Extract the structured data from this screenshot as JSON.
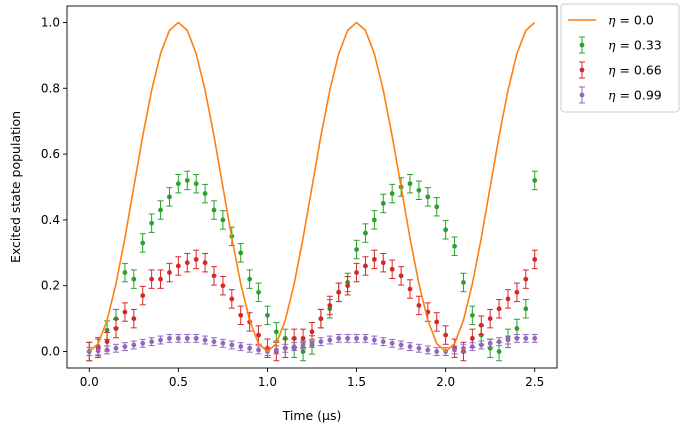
{
  "chart_data": {
    "type": "line",
    "xlabel": "Time (µs)",
    "ylabel": "Excited state population",
    "xlim": [
      -0.125,
      2.625
    ],
    "ylim": [
      -0.05,
      1.05
    ],
    "x_ticks": [
      0.0,
      0.5,
      1.0,
      1.5,
      2.0,
      2.5
    ],
    "x_tick_labels": [
      "0.0",
      "0.5",
      "1.0",
      "1.5",
      "2.0",
      "2.5"
    ],
    "y_ticks": [
      0.0,
      0.2,
      0.4,
      0.6,
      0.8,
      1.0
    ],
    "y_tick_labels": [
      "0.0",
      "0.2",
      "0.4",
      "0.6",
      "0.8",
      "1.0"
    ],
    "grid": false,
    "legend_position": "outside-top-right",
    "legend_symbol": "η",
    "series": [
      {
        "name": "η = 0.0",
        "legend_value": "0.0",
        "kind": "line",
        "color": "#ff7f0e",
        "x": [
          0.0,
          0.05,
          0.1,
          0.15,
          0.2,
          0.25,
          0.3,
          0.35,
          0.4,
          0.45,
          0.5,
          0.55,
          0.6,
          0.65,
          0.7,
          0.75,
          0.8,
          0.85,
          0.9,
          0.95,
          1.0,
          1.05,
          1.1,
          1.15,
          1.2,
          1.25,
          1.3,
          1.35,
          1.4,
          1.45,
          1.5,
          1.55,
          1.6,
          1.65,
          1.7,
          1.75,
          1.8,
          1.85,
          1.9,
          1.95,
          2.0,
          2.05,
          2.1,
          2.15,
          2.2,
          2.25,
          2.3,
          2.35,
          2.4,
          2.45,
          2.5
        ],
        "y": [
          0.0,
          0.024,
          0.095,
          0.206,
          0.345,
          0.5,
          0.655,
          0.794,
          0.905,
          0.976,
          1.0,
          0.976,
          0.905,
          0.794,
          0.655,
          0.5,
          0.345,
          0.206,
          0.095,
          0.024,
          0.0,
          0.024,
          0.095,
          0.206,
          0.345,
          0.5,
          0.655,
          0.794,
          0.905,
          0.976,
          1.0,
          0.976,
          0.905,
          0.794,
          0.655,
          0.5,
          0.345,
          0.206,
          0.095,
          0.024,
          0.0,
          0.024,
          0.095,
          0.206,
          0.345,
          0.5,
          0.655,
          0.794,
          0.905,
          0.976,
          1.0
        ]
      },
      {
        "name": "η = 0.33",
        "legend_value": "0.33",
        "kind": "errorbar",
        "color": "#2ca02c",
        "x": [
          0.0,
          0.05,
          0.1,
          0.15,
          0.2,
          0.25,
          0.3,
          0.35,
          0.4,
          0.45,
          0.5,
          0.55,
          0.6,
          0.65,
          0.7,
          0.75,
          0.8,
          0.85,
          0.9,
          0.95,
          1.0,
          1.05,
          1.1,
          1.15,
          1.2,
          1.25,
          1.3,
          1.35,
          1.4,
          1.45,
          1.5,
          1.55,
          1.6,
          1.65,
          1.7,
          1.75,
          1.8,
          1.85,
          1.9,
          1.95,
          2.0,
          2.05,
          2.1,
          2.15,
          2.2,
          2.25,
          2.3,
          2.35,
          2.4,
          2.45,
          2.5
        ],
        "y": [
          0.0,
          0.015,
          0.065,
          0.1,
          0.24,
          0.22,
          0.33,
          0.39,
          0.43,
          0.47,
          0.51,
          0.52,
          0.51,
          0.48,
          0.43,
          0.4,
          0.35,
          0.3,
          0.22,
          0.18,
          0.11,
          0.06,
          0.04,
          0.01,
          0.0,
          0.02,
          0.1,
          0.13,
          0.18,
          0.21,
          0.31,
          0.36,
          0.4,
          0.45,
          0.48,
          0.5,
          0.51,
          0.49,
          0.47,
          0.44,
          0.37,
          0.32,
          0.21,
          0.11,
          0.05,
          0.01,
          0.0,
          0.04,
          0.07,
          0.13,
          0.52
        ],
        "yerr": 0.028
      },
      {
        "name": "η = 0.66",
        "legend_value": "0.66",
        "kind": "errorbar",
        "color": "#d62728",
        "x": [
          0.0,
          0.05,
          0.1,
          0.15,
          0.2,
          0.25,
          0.3,
          0.35,
          0.4,
          0.45,
          0.5,
          0.55,
          0.6,
          0.65,
          0.7,
          0.75,
          0.8,
          0.85,
          0.9,
          0.95,
          1.0,
          1.05,
          1.1,
          1.15,
          1.2,
          1.25,
          1.3,
          1.35,
          1.4,
          1.45,
          1.5,
          1.55,
          1.6,
          1.65,
          1.7,
          1.75,
          1.8,
          1.85,
          1.9,
          1.95,
          2.0,
          2.05,
          2.1,
          2.15,
          2.2,
          2.25,
          2.3,
          2.35,
          2.4,
          2.45,
          2.5
        ],
        "y": [
          0.0,
          0.01,
          0.03,
          0.07,
          0.12,
          0.1,
          0.17,
          0.22,
          0.22,
          0.24,
          0.26,
          0.27,
          0.28,
          0.27,
          0.23,
          0.2,
          0.16,
          0.11,
          0.09,
          0.05,
          0.01,
          0.0,
          0.01,
          0.04,
          0.04,
          0.06,
          0.1,
          0.14,
          0.18,
          0.2,
          0.24,
          0.26,
          0.28,
          0.27,
          0.25,
          0.23,
          0.19,
          0.14,
          0.12,
          0.09,
          0.05,
          0.01,
          0.0,
          0.04,
          0.08,
          0.1,
          0.13,
          0.16,
          0.18,
          0.22,
          0.28
        ],
        "yerr": 0.028
      },
      {
        "name": "η = 0.99",
        "legend_value": "0.99",
        "kind": "errorbar",
        "color": "#9467bd",
        "x": [
          0.0,
          0.05,
          0.1,
          0.15,
          0.2,
          0.25,
          0.3,
          0.35,
          0.4,
          0.45,
          0.5,
          0.55,
          0.6,
          0.65,
          0.7,
          0.75,
          0.8,
          0.85,
          0.9,
          0.95,
          1.0,
          1.05,
          1.1,
          1.15,
          1.2,
          1.25,
          1.3,
          1.35,
          1.4,
          1.45,
          1.5,
          1.55,
          1.6,
          1.65,
          1.7,
          1.75,
          1.8,
          1.85,
          1.9,
          1.95,
          2.0,
          2.05,
          2.1,
          2.15,
          2.2,
          2.25,
          2.3,
          2.35,
          2.4,
          2.45,
          2.5
        ],
        "y": [
          0.0,
          0.002,
          0.005,
          0.01,
          0.015,
          0.02,
          0.025,
          0.03,
          0.035,
          0.04,
          0.04,
          0.04,
          0.04,
          0.035,
          0.03,
          0.025,
          0.02,
          0.015,
          0.01,
          0.005,
          0.0,
          0.005,
          0.01,
          0.015,
          0.02,
          0.025,
          0.03,
          0.035,
          0.04,
          0.04,
          0.04,
          0.04,
          0.035,
          0.03,
          0.025,
          0.02,
          0.015,
          0.01,
          0.005,
          0.0,
          0.0,
          0.005,
          0.01,
          0.015,
          0.02,
          0.025,
          0.03,
          0.035,
          0.04,
          0.04,
          0.04
        ],
        "yerr": 0.012
      }
    ]
  }
}
